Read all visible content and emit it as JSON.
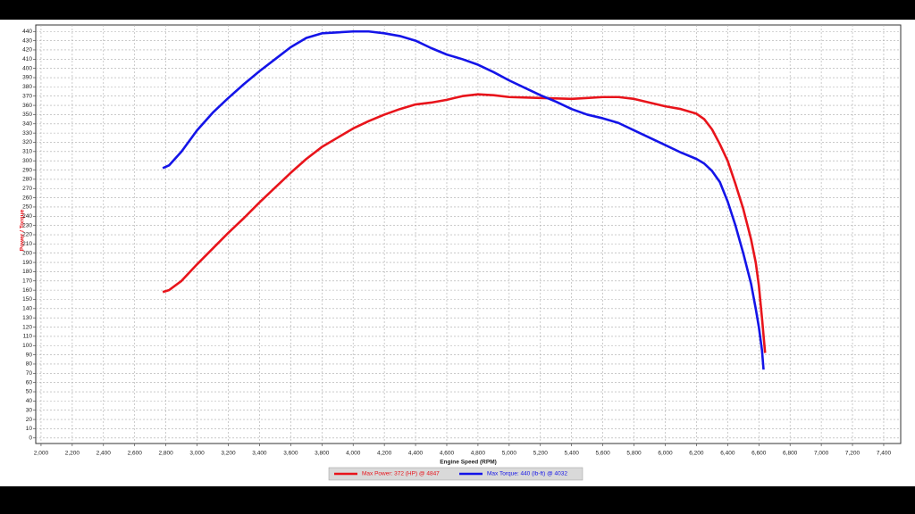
{
  "chart_data": {
    "type": "line",
    "x_label": "Engine Speed (RPM)",
    "y_label": "Power / Torque",
    "xlim": [
      1966,
      7509
    ],
    "ylim": [
      -6,
      447
    ],
    "grid": true,
    "xticks": [
      {
        "value": 2000,
        "label": "2,000"
      },
      {
        "value": 2200,
        "label": "2,200"
      },
      {
        "value": 2400,
        "label": "2,400"
      },
      {
        "value": 2600,
        "label": "2,600"
      },
      {
        "value": 2800,
        "label": "2,800"
      },
      {
        "value": 3000,
        "label": "3,000"
      },
      {
        "value": 3200,
        "label": "3,200"
      },
      {
        "value": 3400,
        "label": "3,400"
      },
      {
        "value": 3600,
        "label": "3,600"
      },
      {
        "value": 3800,
        "label": "3,800"
      },
      {
        "value": 4000,
        "label": "4,000"
      },
      {
        "value": 4200,
        "label": "4,200"
      },
      {
        "value": 4400,
        "label": "4,400"
      },
      {
        "value": 4600,
        "label": "4,600"
      },
      {
        "value": 4800,
        "label": "4,800"
      },
      {
        "value": 5000,
        "label": "5,000"
      },
      {
        "value": 5200,
        "label": "5,200"
      },
      {
        "value": 5400,
        "label": "5,400"
      },
      {
        "value": 5600,
        "label": "5,600"
      },
      {
        "value": 5800,
        "label": "5,800"
      },
      {
        "value": 6000,
        "label": "6,000"
      },
      {
        "value": 6200,
        "label": "6,200"
      },
      {
        "value": 6400,
        "label": "6,400"
      },
      {
        "value": 6600,
        "label": "6,600"
      },
      {
        "value": 6800,
        "label": "6,800"
      },
      {
        "value": 7000,
        "label": "7,000"
      },
      {
        "value": 7200,
        "label": "7,200"
      },
      {
        "value": 7400,
        "label": "7,400"
      }
    ],
    "yticks": [
      0,
      10,
      20,
      30,
      40,
      50,
      60,
      70,
      80,
      90,
      100,
      110,
      120,
      130,
      140,
      150,
      160,
      170,
      180,
      190,
      200,
      210,
      220,
      230,
      240,
      250,
      260,
      270,
      280,
      290,
      300,
      310,
      320,
      330,
      340,
      350,
      360,
      370,
      380,
      390,
      400,
      410,
      420,
      430,
      440
    ],
    "series": [
      {
        "name": "Max Power: 372 (HP) @ 4847",
        "color": "#e8141b",
        "x": [
          2780,
          2820,
          2900,
          3000,
          3100,
          3200,
          3300,
          3400,
          3500,
          3600,
          3700,
          3800,
          3900,
          4000,
          4100,
          4200,
          4300,
          4400,
          4500,
          4600,
          4700,
          4800,
          4900,
          5000,
          5200,
          5400,
          5500,
          5600,
          5700,
          5800,
          5900,
          6000,
          6100,
          6200,
          6250,
          6300,
          6350,
          6400,
          6450,
          6500,
          6550,
          6580,
          6600,
          6620,
          6640
        ],
        "values": [
          158,
          160,
          170,
          188,
          205,
          222,
          238,
          255,
          271,
          287,
          302,
          315,
          325,
          335,
          343,
          350,
          356,
          361,
          363,
          366,
          370,
          372,
          371,
          369,
          368,
          367,
          368,
          369,
          369,
          367,
          363,
          359,
          356,
          351,
          345,
          334,
          318,
          300,
          275,
          248,
          215,
          190,
          165,
          130,
          92
        ]
      },
      {
        "name": "Max Torque: 440 (lb-ft) @ 4032",
        "color": "#1414e8",
        "x": [
          2780,
          2820,
          2900,
          3000,
          3100,
          3200,
          3300,
          3400,
          3500,
          3600,
          3700,
          3800,
          3900,
          4000,
          4100,
          4200,
          4300,
          4400,
          4500,
          4600,
          4700,
          4800,
          4900,
          5000,
          5100,
          5200,
          5300,
          5400,
          5500,
          5600,
          5700,
          5800,
          5900,
          6000,
          6100,
          6200,
          6250,
          6300,
          6350,
          6400,
          6450,
          6500,
          6550,
          6580,
          6600,
          6620,
          6630
        ],
        "values": [
          292,
          295,
          310,
          333,
          352,
          368,
          383,
          397,
          410,
          423,
          433,
          438,
          439,
          440,
          440,
          438,
          435,
          430,
          422,
          415,
          410,
          404,
          396,
          387,
          379,
          371,
          364,
          356,
          350,
          346,
          341,
          333,
          325,
          317,
          309,
          302,
          297,
          289,
          277,
          256,
          230,
          200,
          167,
          140,
          120,
          95,
          74
        ]
      }
    ]
  }
}
